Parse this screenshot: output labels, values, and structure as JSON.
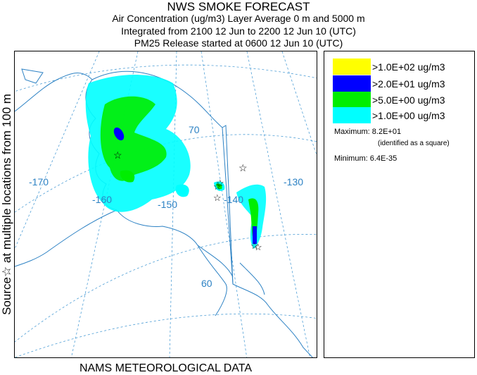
{
  "header": {
    "title": "NWS SMOKE FORECAST",
    "line2": "Air Concentration (ug/m3) Layer Average    0 m and  5000 m",
    "line3": "Integrated from 2100 12 Jun to 2200 12 Jun 10 (UTC)",
    "line4": "PM25 Release started at 0600 12 Jun 10 (UTC)"
  },
  "side_label": "Source☆  at multiple locations    from    100 m",
  "footer": "NAMS METEOROLOGICAL DATA",
  "map": {
    "lon_labels": [
      "-170",
      "-160",
      "-150",
      "-140",
      "-130"
    ],
    "lat_labels": [
      "70",
      "60"
    ],
    "source_icon": "star-icon"
  },
  "legend": {
    "items": [
      {
        "label": ">1.0E+02 ug/m3",
        "color": "#ffff00"
      },
      {
        "label": ">2.0E+01 ug/m3",
        "color": "#0000ff"
      },
      {
        "label": ">5.0E+00 ug/m3",
        "color": "#00ee00"
      },
      {
        "label": ">1.0E+00 ug/m3",
        "color": "#00ffff"
      }
    ],
    "maximum": "Maximum: 8.2E+01",
    "maximum_note": "(identified as a square)",
    "minimum": "Minimum: 6.4E-35"
  }
}
